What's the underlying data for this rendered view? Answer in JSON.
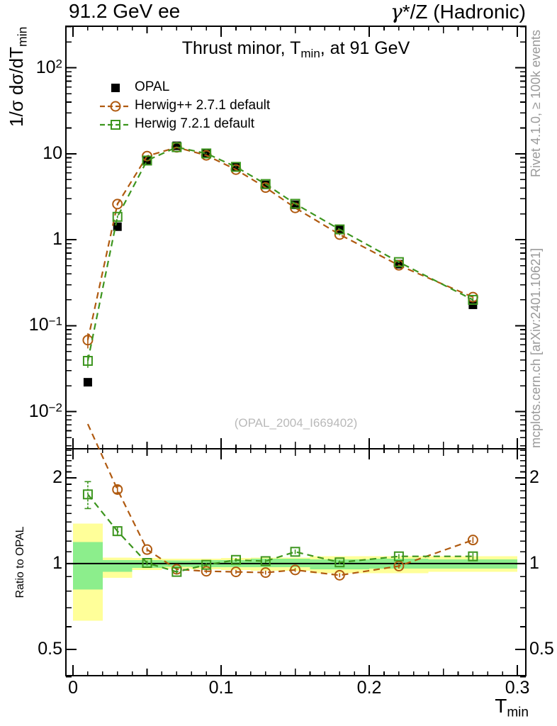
{
  "header": {
    "left": "91.2 GeV ee",
    "right": "γ*/Z (Hadronic)"
  },
  "side_notes": {
    "top": "Rivet 4.1.0, ≥ 100k events",
    "bottom": "mcplots.cern.ch [arXiv:2401.10621]"
  },
  "watermark": "(OPAL_2004_I669402)",
  "chart_data": {
    "type": "line",
    "title": "Thrust minor, T_min, at 91 GeV",
    "xlabel": "T_min",
    "ylabel_main": "1/σ  dσ/dT_min",
    "ylabel_ratio": "Ratio to OPAL",
    "x": [
      0.01,
      0.03,
      0.05,
      0.07,
      0.09,
      0.11,
      0.13,
      0.15,
      0.18,
      0.22,
      0.27
    ],
    "bin_edges": [
      0,
      0.02,
      0.04,
      0.06,
      0.08,
      0.1,
      0.12,
      0.14,
      0.16,
      0.2,
      0.24,
      0.3
    ],
    "series": [
      {
        "name": "OPAL",
        "color": "#000000",
        "marker": "square-filled",
        "line": "none",
        "values": [
          0.022,
          1.42,
          8.3,
          12.4,
          10.2,
          7.0,
          4.35,
          2.55,
          1.3,
          0.52,
          0.175
        ],
        "yerr_frac": [
          0.05,
          0.06,
          0.03,
          0.03,
          0.025,
          0.025,
          0.025,
          0.03,
          0.03,
          0.04,
          0.07
        ]
      },
      {
        "name": "Herwig++ 2.7.1 default",
        "color": "#b05a10",
        "marker": "circle-open",
        "line": "dashed",
        "values": [
          0.068,
          2.6,
          9.4,
          11.9,
          9.6,
          6.55,
          4.05,
          2.35,
          1.15,
          0.505,
          0.215
        ],
        "yerr_frac": [
          0.2,
          0.04,
          0.02,
          0.015,
          0.015,
          0.015,
          0.015,
          0.02,
          0.02,
          0.025,
          0.04
        ],
        "ratio": [
          3.09,
          1.82,
          1.12,
          0.955,
          0.94,
          0.935,
          0.93,
          0.95,
          0.91,
          0.98,
          1.21
        ],
        "ratio_err": [
          0,
          0.05,
          0.02,
          0.015,
          0.015,
          0.015,
          0.015,
          0.015,
          0.015,
          0.02,
          0.03
        ]
      },
      {
        "name": "Herwig 7.2.1 default",
        "color": "#3c951e",
        "marker": "square-open",
        "line": "dashed",
        "values": [
          0.039,
          1.85,
          8.35,
          11.95,
          10.1,
          7.05,
          4.45,
          2.62,
          1.32,
          0.55,
          0.2
        ],
        "yerr_frac": [
          0.17,
          0.035,
          0.02,
          0.015,
          0.015,
          0.015,
          0.015,
          0.02,
          0.02,
          0.025,
          0.04
        ],
        "ratio": [
          1.75,
          1.3,
          1.005,
          0.935,
          0.99,
          1.03,
          1.02,
          1.1,
          1.01,
          1.06,
          1.06
        ],
        "ratio_err": [
          0.19,
          0.045,
          0.02,
          0.015,
          0.015,
          0.015,
          0.015,
          0.02,
          0.015,
          0.02,
          0.03
        ]
      }
    ],
    "ratio_bands": {
      "yellow_color": "#ffff99",
      "green_color": "#8cee8c",
      "yellow": [
        [
          0.63,
          1.38
        ],
        [
          0.89,
          1.05
        ],
        [
          0.95,
          1.045
        ],
        [
          0.96,
          1.04
        ],
        [
          0.955,
          1.04
        ],
        [
          0.95,
          1.045
        ],
        [
          0.945,
          1.05
        ],
        [
          0.945,
          1.05
        ],
        [
          0.925,
          1.06
        ],
        [
          0.925,
          1.06
        ],
        [
          0.935,
          1.06
        ]
      ],
      "green": [
        [
          0.81,
          1.19
        ],
        [
          0.935,
          1.03
        ],
        [
          0.965,
          1.03
        ],
        [
          0.975,
          1.025
        ],
        [
          0.97,
          1.03
        ],
        [
          0.97,
          1.03
        ],
        [
          0.97,
          1.04
        ],
        [
          0.97,
          1.04
        ],
        [
          0.955,
          1.035
        ],
        [
          0.96,
          1.04
        ],
        [
          0.96,
          1.035
        ]
      ]
    },
    "axes": {
      "x": {
        "min": -0.0048,
        "max": 0.3057,
        "ticks": [
          0,
          0.1,
          0.2,
          0.3
        ],
        "tick_labels": [
          "0",
          "0.1",
          "0.2",
          "0.3"
        ]
      },
      "y_main": {
        "scale": "log",
        "min": 0.0037,
        "max": 305,
        "tick_labels": [
          {
            "v": 100,
            "label": "10^2"
          },
          {
            "v": 10,
            "label": "10"
          },
          {
            "v": 1,
            "label": "1"
          },
          {
            "v": 0.1,
            "label": "10^−1"
          },
          {
            "v": 0.01,
            "label": "10^−2"
          }
        ]
      },
      "y_ratio": {
        "scale": "log",
        "min": 0.404,
        "max": 2.53,
        "tick_labels": [
          {
            "v": 2,
            "label": "2"
          },
          {
            "v": 1,
            "label": "1"
          },
          {
            "v": 0.5,
            "label": "0.5"
          }
        ]
      }
    }
  }
}
